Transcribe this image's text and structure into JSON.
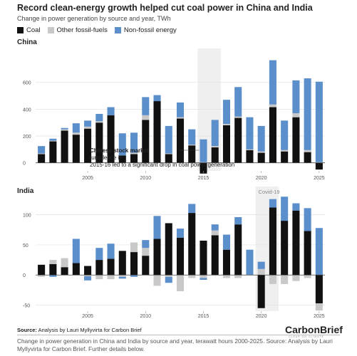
{
  "header": {
    "title": "Record clean-energy growth helped cut coal power in China and India",
    "subtitle": "Change in power generation by source and year, TWh"
  },
  "legend": [
    {
      "label": "Coal",
      "color": "#111111"
    },
    {
      "label": "Other fossil-fuels",
      "color": "#c8c8c8"
    },
    {
      "label": "Non-fossil energy",
      "color": "#5b8fcc"
    }
  ],
  "footer": {
    "source_prefix": "Source:",
    "source_text": " Analysis by Lauri Myllyvirta for Carbon Brief",
    "caption": "Change in power generation in China and India by source and year, terawatt hours 2000-2025. Source: Analysis by Lauri Myllyvirta for Carbon Brief. Further details below.",
    "brand": "CarbonBrief",
    "brand_tagline": "CLEAR ON CLIMATE"
  },
  "chart_data": [
    {
      "type": "bar",
      "stacked": true,
      "panel": "China",
      "x": [
        2001,
        2002,
        2003,
        2004,
        2005,
        2006,
        2007,
        2008,
        2009,
        2010,
        2011,
        2012,
        2013,
        2014,
        2015,
        2016,
        2017,
        2018,
        2019,
        2020,
        2021,
        2022,
        2023,
        2024,
        2025
      ],
      "series": [
        {
          "name": "Coal",
          "values": [
            65,
            160,
            240,
            210,
            255,
            300,
            355,
            55,
            65,
            320,
            460,
            65,
            330,
            130,
            -80,
            115,
            280,
            335,
            95,
            75,
            415,
            85,
            340,
            80,
            -50
          ]
        },
        {
          "name": "Other fossil-fuels",
          "values": [
            5,
            5,
            10,
            15,
            15,
            10,
            0,
            0,
            10,
            35,
            0,
            5,
            10,
            5,
            5,
            10,
            10,
            10,
            5,
            10,
            20,
            10,
            30,
            15,
            5
          ]
        },
        {
          "name": "Non-fossil energy",
          "values": [
            55,
            15,
            10,
            70,
            45,
            55,
            60,
            165,
            150,
            135,
            45,
            205,
            110,
            115,
            170,
            195,
            180,
            220,
            240,
            190,
            330,
            220,
            245,
            535,
            600
          ]
        }
      ],
      "ylim": [
        -60,
        800
      ],
      "yticks": [
        0,
        200,
        400,
        600
      ],
      "xticks": [
        2005,
        2010,
        2015,
        2020,
        2025
      ],
      "highlight": {
        "from": 2015,
        "to": 2016
      },
      "annotation": "Chinese stock market turbulence in 2015-16 led to a significant drop in coal power generation"
    },
    {
      "type": "bar",
      "stacked": true,
      "panel": "India",
      "x": [
        2001,
        2002,
        2003,
        2004,
        2005,
        2006,
        2007,
        2008,
        2009,
        2010,
        2011,
        2012,
        2013,
        2014,
        2015,
        2016,
        2017,
        2018,
        2019,
        2020,
        2021,
        2022,
        2023,
        2024,
        2025
      ],
      "series": [
        {
          "name": "Coal",
          "values": [
            17,
            18,
            13,
            20,
            15,
            25,
            27,
            40,
            38,
            32,
            60,
            86,
            62,
            103,
            57,
            66,
            42,
            84,
            0,
            -55,
            112,
            90,
            107,
            73,
            -47
          ]
        },
        {
          "name": "Other fossil-fuels",
          "values": [
            -3,
            7,
            15,
            0,
            -2,
            -7,
            -7,
            -3,
            16,
            13,
            -18,
            -3,
            -27,
            -5,
            -5,
            8,
            -5,
            -5,
            0,
            10,
            -15,
            -15,
            -10,
            -5,
            -12
          ]
        },
        {
          "name": "Non-fossil energy",
          "values": [
            0,
            -3,
            0,
            40,
            -7,
            20,
            25,
            -3,
            -3,
            13,
            38,
            -10,
            15,
            15,
            -3,
            10,
            25,
            12,
            42,
            12,
            14,
            40,
            12,
            38,
            78
          ]
        }
      ],
      "ylim": [
        -60,
        135
      ],
      "yticks": [
        -50,
        0,
        50,
        100
      ],
      "xticks": [
        2005,
        2010,
        2015,
        2020,
        2025
      ],
      "highlight": {
        "from": 2020,
        "to": 2021
      },
      "annotation": "Covid-19"
    }
  ]
}
